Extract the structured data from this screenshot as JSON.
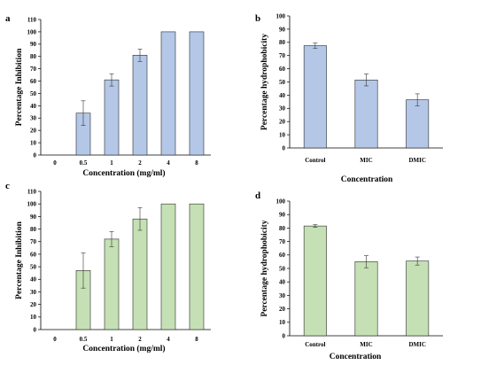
{
  "chart_data": [
    {
      "panel_letter": "a",
      "type": "bar",
      "categories": [
        "0",
        "0.5",
        "1",
        "2",
        "4",
        "8"
      ],
      "values": [
        0,
        34,
        61,
        81,
        100,
        100
      ],
      "errors": [
        0,
        10,
        5,
        5,
        0,
        0
      ],
      "xlabel": "Concentration (mg/ml)",
      "ylabel": "Percentage Inhibition",
      "ylim": [
        0,
        110
      ],
      "yticks": [
        0,
        10,
        20,
        30,
        40,
        50,
        60,
        70,
        80,
        90,
        100,
        110
      ],
      "bar_color": "#b4c7e7",
      "grid": false
    },
    {
      "panel_letter": "b",
      "type": "bar",
      "categories": [
        "Control",
        "MIC",
        "DMIC"
      ],
      "values": [
        77.5,
        51.5,
        36.5
      ],
      "errors": [
        2,
        4.5,
        4.5
      ],
      "xlabel": "Concentration",
      "ylabel": "Percentage hydrophobicity",
      "ylim": [
        0,
        100
      ],
      "yticks": [
        0,
        10,
        20,
        30,
        40,
        50,
        60,
        70,
        80,
        90,
        100
      ],
      "bar_color": "#b4c7e7",
      "grid": false
    },
    {
      "panel_letter": "c",
      "type": "bar",
      "categories": [
        "0",
        "0.5",
        "1",
        "2",
        "4",
        "8"
      ],
      "values": [
        0,
        47,
        72,
        88,
        100,
        100
      ],
      "errors": [
        0,
        14,
        6,
        9,
        0,
        0
      ],
      "xlabel": "Concentration (mg/ml)",
      "ylabel": "Percentage Inhibition",
      "ylim": [
        0,
        110
      ],
      "yticks": [
        0,
        10,
        20,
        30,
        40,
        50,
        60,
        70,
        80,
        90,
        100,
        110
      ],
      "bar_color": "#c5e0b4",
      "grid": false
    },
    {
      "panel_letter": "d",
      "type": "bar",
      "categories": [
        "Control",
        "MIC",
        "DMIC"
      ],
      "values": [
        81.5,
        55,
        55.5
      ],
      "errors": [
        1,
        4.5,
        3
      ],
      "xlabel": "Concentration",
      "ylabel": "Percentage hydrophobicity",
      "ylim": [
        0,
        100
      ],
      "yticks": [
        0,
        10,
        20,
        30,
        40,
        50,
        60,
        70,
        80,
        90,
        100
      ],
      "bar_color": "#c5e0b4",
      "grid": false
    }
  ]
}
